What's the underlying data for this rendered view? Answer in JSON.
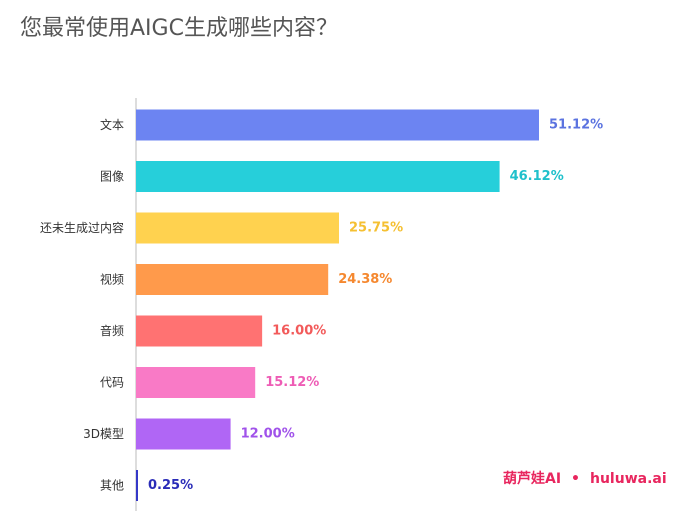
{
  "chart_data": {
    "type": "bar",
    "orientation": "horizontal",
    "title": "您最常使用AIGC生成哪些内容？",
    "categories": [
      "文本",
      "图像",
      "还未生成过内容",
      "视频",
      "音频",
      "代码",
      "3D模型",
      "其他"
    ],
    "values": [
      51.12,
      46.12,
      25.75,
      24.38,
      16.0,
      15.12,
      12.0,
      0.25
    ],
    "value_labels": [
      "51.12%",
      "46.12%",
      "25.75%",
      "24.38%",
      "16.00%",
      "15.12%",
      "12.00%",
      "0.25%"
    ],
    "colors": [
      "#6c84f2",
      "#26cfda",
      "#ffd24f",
      "#ff9a4b",
      "#ff7272",
      "#f97ac6",
      "#b066f5",
      "#3538c8"
    ],
    "label_colors": [
      "#5b73e0",
      "#1fc0cb",
      "#f5c032",
      "#f5882f",
      "#f25a5a",
      "#ee5cb5",
      "#a052ea",
      "#2a2cb8"
    ],
    "xlim": [
      0,
      51.12
    ],
    "grid": false,
    "legend": "none"
  },
  "watermark": {
    "brand": "葫芦娃AI",
    "separator": "•",
    "site": "huluwa.ai"
  }
}
